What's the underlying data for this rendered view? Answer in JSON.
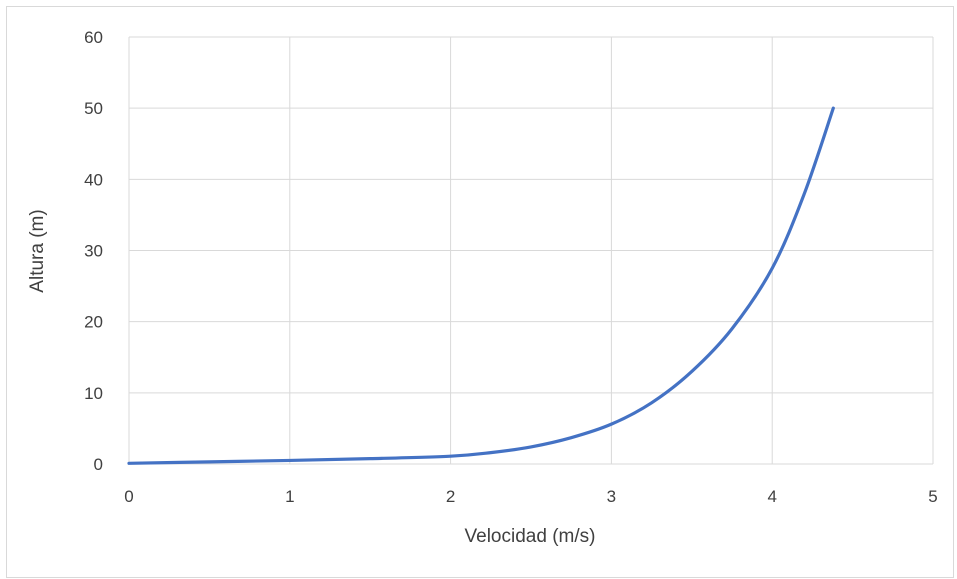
{
  "chart_data": {
    "type": "line",
    "title": "",
    "xlabel": "Velocidad (m/s)",
    "ylabel": "Altura (m)",
    "xlim": [
      0,
      5
    ],
    "ylim": [
      0,
      60
    ],
    "xticks": [
      0,
      1,
      2,
      3,
      4,
      5
    ],
    "yticks": [
      0,
      10,
      20,
      30,
      40,
      50,
      60
    ],
    "grid": true,
    "legend": "none",
    "series": [
      {
        "color": "#4472C4",
        "smooth": true,
        "points": [
          {
            "x": 0.0,
            "y": 0.1
          },
          {
            "x": 0.5,
            "y": 0.3
          },
          {
            "x": 1.0,
            "y": 0.5
          },
          {
            "x": 1.5,
            "y": 0.75
          },
          {
            "x": 2.0,
            "y": 1.1
          },
          {
            "x": 2.25,
            "y": 1.6
          },
          {
            "x": 2.5,
            "y": 2.4
          },
          {
            "x": 2.75,
            "y": 3.7
          },
          {
            "x": 3.0,
            "y": 5.6
          },
          {
            "x": 3.25,
            "y": 8.6
          },
          {
            "x": 3.5,
            "y": 13.0
          },
          {
            "x": 3.75,
            "y": 19.0
          },
          {
            "x": 4.0,
            "y": 27.5
          },
          {
            "x": 4.2,
            "y": 38.0
          },
          {
            "x": 4.38,
            "y": 50.0
          }
        ]
      }
    ]
  }
}
